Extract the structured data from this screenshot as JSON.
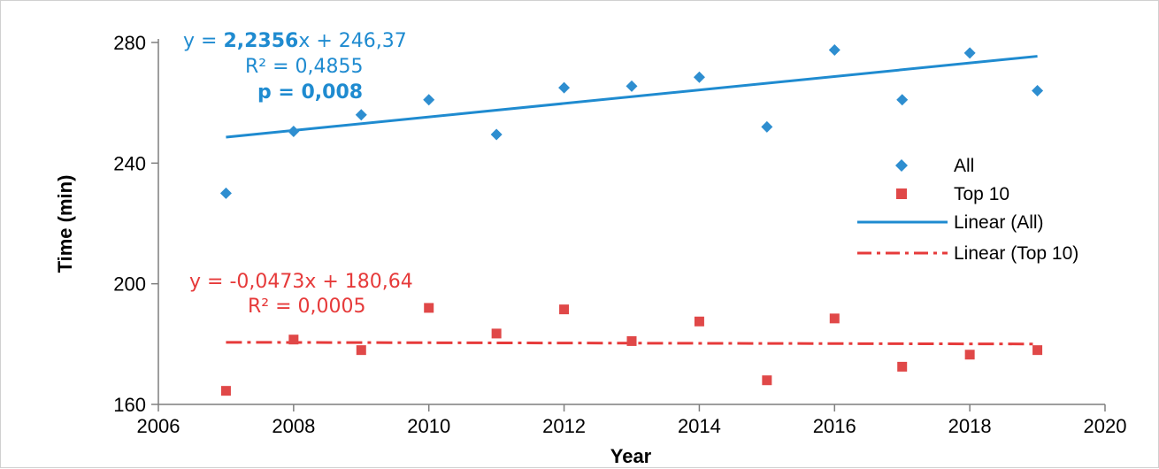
{
  "chart_data": {
    "type": "scatter",
    "xlabel": "Year",
    "ylabel": "Time (min)",
    "xlim": [
      2006,
      2020
    ],
    "ylim": [
      160,
      280
    ],
    "xticks": [
      2006,
      2008,
      2010,
      2012,
      2014,
      2016,
      2018,
      2020
    ],
    "yticks": [
      160,
      200,
      240,
      280
    ],
    "grid": false,
    "legend_position": "right",
    "series": [
      {
        "name": "All",
        "marker": "diamond",
        "color": "#2e8ed0",
        "x": [
          2007,
          2008,
          2009,
          2010,
          2011,
          2012,
          2013,
          2014,
          2015,
          2016,
          2017,
          2018,
          2019
        ],
        "y": [
          230,
          250.5,
          256,
          261,
          249.5,
          265,
          265.5,
          268.5,
          252,
          277.5,
          261,
          276.5,
          264
        ]
      },
      {
        "name": "Top 10",
        "marker": "square",
        "color": "#e04848",
        "x": [
          2007,
          2008,
          2009,
          2010,
          2011,
          2012,
          2013,
          2014,
          2015,
          2016,
          2017,
          2018,
          2019
        ],
        "y": [
          164.5,
          181.5,
          178,
          192,
          183.5,
          191.5,
          181,
          187.5,
          168,
          188.5,
          172.5,
          176.5,
          178
        ]
      }
    ],
    "trendlines": [
      {
        "name": "Linear (All)",
        "color": "#1f8bd0",
        "style": "solid",
        "slope": 2.2356,
        "intercept_at_2006": 246.37,
        "x_range": [
          2007,
          2019
        ],
        "equation_prefix": "y = ",
        "equation_slope": "2,2356",
        "equation_rest": "x + 246,37",
        "r2": "R² = 0,4855",
        "p": "p = 0,008"
      },
      {
        "name": "Linear (Top 10)",
        "color": "#e63a3a",
        "style": "dash-dot",
        "slope": -0.0473,
        "intercept_at_2006": 180.64,
        "x_range": [
          2007,
          2019
        ],
        "equation": "y = -0,0473x + 180,64",
        "r2": "R² = 0,0005"
      }
    ],
    "legend": [
      "All",
      "Top 10",
      "Linear (All)",
      "Linear (Top 10)"
    ]
  }
}
